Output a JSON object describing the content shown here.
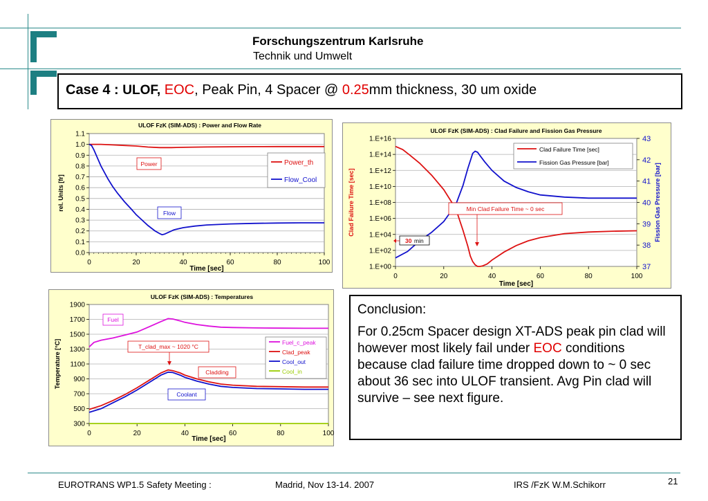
{
  "header": {
    "title": "Forschungszentrum Karlsruhe",
    "subtitle": "Technik und Umwelt",
    "colors": {
      "accent": "#1d7f82"
    }
  },
  "case": {
    "label": "Case 4 :",
    "ulof": "ULOF,",
    "eoc": "EOC",
    "sep": ",",
    "middle": "Peak Pin, 4 Spacer @",
    "thickness": "0.25",
    "tail": "mm thickness, 30 um oxide"
  },
  "conclusion": {
    "heading": "Conclusion:",
    "body_start": "For 0.25cm Spacer design XT-ADS peak pin clad will however most likely fail  under",
    "body_eoc": "EOC",
    "body_end": "conditions because clad failure time dropped down to ~ 0 sec about 36 sec into ULOF transient. Avg Pin clad will survive – see next figure."
  },
  "footer": {
    "left": "EUROTRANS  WP1.5 Safety Meeting :",
    "middle": "Madrid, Nov 13-14.  2007",
    "right": "IRS /FzK    W.M.Schikorr",
    "page": "21"
  },
  "chart_data": [
    {
      "type": "line",
      "title": "ULOF  FzK (SIM-ADS) :  Power and Flow Rate",
      "xlabel": "Time [sec]",
      "ylabel": "rel.  Units [fr]",
      "xlim": [
        0,
        100
      ],
      "ylim": [
        0,
        1.1
      ],
      "xticks": [
        "0",
        "20",
        "40",
        "60",
        "80",
        "100"
      ],
      "yticks": [
        "0.0",
        "0.1",
        "0.2",
        "0.3",
        "0.4",
        "0.5",
        "0.6",
        "0.7",
        "0.8",
        "0.9",
        "1.0",
        "1.1"
      ],
      "grid": true,
      "legend": "right",
      "series": [
        {
          "name": "Power_th",
          "color": "#dd1111",
          "x": [
            0,
            5,
            10,
            15,
            20,
            25,
            30,
            35,
            40,
            50,
            60,
            70,
            80,
            90,
            100
          ],
          "y": [
            1.0,
            1.0,
            0.995,
            0.99,
            0.985,
            0.975,
            0.97,
            0.97,
            0.973,
            0.976,
            0.978,
            0.979,
            0.98,
            0.98,
            0.98
          ]
        },
        {
          "name": "Flow_Cool",
          "color": "#1111cc",
          "x": [
            0,
            1,
            2,
            3,
            5,
            8,
            10,
            12,
            15,
            18,
            20,
            22,
            25,
            28,
            30,
            31,
            32,
            34,
            36,
            40,
            45,
            50,
            60,
            70,
            80,
            90,
            100
          ],
          "y": [
            1.0,
            0.99,
            0.95,
            0.9,
            0.8,
            0.68,
            0.61,
            0.55,
            0.47,
            0.4,
            0.35,
            0.31,
            0.25,
            0.2,
            0.175,
            0.165,
            0.17,
            0.19,
            0.21,
            0.23,
            0.245,
            0.255,
            0.265,
            0.27,
            0.273,
            0.275,
            0.275
          ]
        }
      ],
      "annotations": [
        {
          "text": "Power",
          "color": "#dd1111"
        },
        {
          "text": "Flow",
          "color": "#1111cc"
        }
      ]
    },
    {
      "type": "line",
      "title": "ULOF FzK (SIM-ADS) :  Clad Failure and Fission Gas Pressure",
      "xlabel": "Time [sec]",
      "ylabel": "Clad Failure Time [sec]",
      "y2label": "Fission Gas Pressure [bar]",
      "xlim": [
        0,
        100
      ],
      "ylim_log10": [
        0,
        16
      ],
      "y2lim": [
        37,
        43
      ],
      "xticks": [
        "0",
        "20",
        "40",
        "60",
        "80",
        "100"
      ],
      "yticks": [
        "1.E+00",
        "1.E+02",
        "1.E+04",
        "1.E+06",
        "1.E+08",
        "1.E+10",
        "1.E+12",
        "1.E+14",
        "1.E+16"
      ],
      "y2ticks": [
        "37",
        "38",
        "39",
        "40",
        "41",
        "42",
        "43"
      ],
      "grid": true,
      "legend": "top-right",
      "series": [
        {
          "name": "Clad Failure Time [sec]",
          "color": "#dd1111",
          "axis": "left-log",
          "x": [
            0,
            3,
            6,
            10,
            15,
            20,
            25,
            28,
            30,
            31,
            32,
            33,
            34,
            35,
            36,
            38,
            40,
            45,
            50,
            55,
            60,
            70,
            80,
            90,
            100
          ],
          "y_log10": [
            15.0,
            14.6,
            13.9,
            12.9,
            11.4,
            9.6,
            7.2,
            4.5,
            2.5,
            1.3,
            0.6,
            0.2,
            0.0,
            0.0,
            0.05,
            0.3,
            0.8,
            1.8,
            2.6,
            3.2,
            3.6,
            4.1,
            4.3,
            4.4,
            4.45
          ]
        },
        {
          "name": "Fission Gas Pressure [bar]",
          "color": "#1111cc",
          "axis": "right",
          "x": [
            0,
            5,
            10,
            15,
            20,
            25,
            28,
            30,
            32,
            33,
            34,
            35,
            37,
            40,
            45,
            50,
            55,
            60,
            70,
            80,
            90,
            100
          ],
          "y": [
            37.4,
            37.7,
            38.2,
            38.6,
            39.1,
            39.9,
            40.8,
            41.6,
            42.3,
            42.4,
            42.35,
            42.2,
            41.9,
            41.5,
            41.0,
            40.7,
            40.5,
            40.35,
            40.25,
            40.2,
            40.2,
            40.2
          ]
        }
      ],
      "annotations": [
        {
          "text": "Min Clad Failure Time ~ 0 sec",
          "color": "#dd1111"
        },
        {
          "text": "30",
          "color": "#dd1111"
        },
        {
          "text": "min",
          "color": "#000000"
        }
      ]
    },
    {
      "type": "line",
      "title": "ULOF FzK (SIM-ADS) :  Temperatures",
      "xlabel": "Time [sec]",
      "ylabel": "Temperature  [°C]",
      "xlim": [
        0,
        100
      ],
      "ylim": [
        300,
        1900
      ],
      "xticks": [
        "0",
        "20",
        "40",
        "60",
        "80",
        "100"
      ],
      "yticks": [
        "300",
        "500",
        "700",
        "900",
        "1100",
        "1300",
        "1500",
        "1700",
        "1900"
      ],
      "grid": true,
      "legend": "right",
      "series": [
        {
          "name": "Fuel_c_peak",
          "color": "#dd11dd",
          "x": [
            0,
            2,
            5,
            10,
            15,
            20,
            25,
            30,
            33,
            35,
            38,
            40,
            45,
            50,
            55,
            60,
            70,
            80,
            90,
            100
          ],
          "y": [
            1330,
            1390,
            1420,
            1450,
            1490,
            1530,
            1600,
            1670,
            1710,
            1705,
            1680,
            1660,
            1630,
            1610,
            1595,
            1590,
            1585,
            1582,
            1580,
            1580
          ]
        },
        {
          "name": "Clad_peak",
          "color": "#dd1111",
          "x": [
            0,
            5,
            10,
            15,
            20,
            25,
            30,
            33,
            35,
            38,
            40,
            45,
            50,
            55,
            60,
            70,
            80,
            90,
            100
          ],
          "y": [
            490,
            540,
            610,
            690,
            780,
            880,
            980,
            1020,
            1010,
            980,
            950,
            900,
            860,
            830,
            815,
            800,
            795,
            790,
            790
          ]
        },
        {
          "name": "Cool_out",
          "color": "#1111cc",
          "x": [
            0,
            5,
            10,
            15,
            20,
            25,
            30,
            33,
            35,
            38,
            40,
            45,
            50,
            55,
            60,
            70,
            80,
            90,
            100
          ],
          "y": [
            450,
            500,
            580,
            660,
            750,
            850,
            950,
            990,
            985,
            950,
            920,
            870,
            830,
            800,
            785,
            770,
            765,
            760,
            760
          ]
        },
        {
          "name": "Cool_in",
          "color": "#99cc00",
          "x": [
            0,
            100
          ],
          "y": [
            300,
            300
          ]
        }
      ],
      "annotations": [
        {
          "text": "Fuel",
          "color": "#dd11dd"
        },
        {
          "text": "T_clad_max ~ 1020 °C",
          "color": "#dd1111"
        },
        {
          "text": "Cladding",
          "color": "#dd1111"
        },
        {
          "text": "Coolant",
          "color": "#1111cc"
        }
      ]
    }
  ]
}
